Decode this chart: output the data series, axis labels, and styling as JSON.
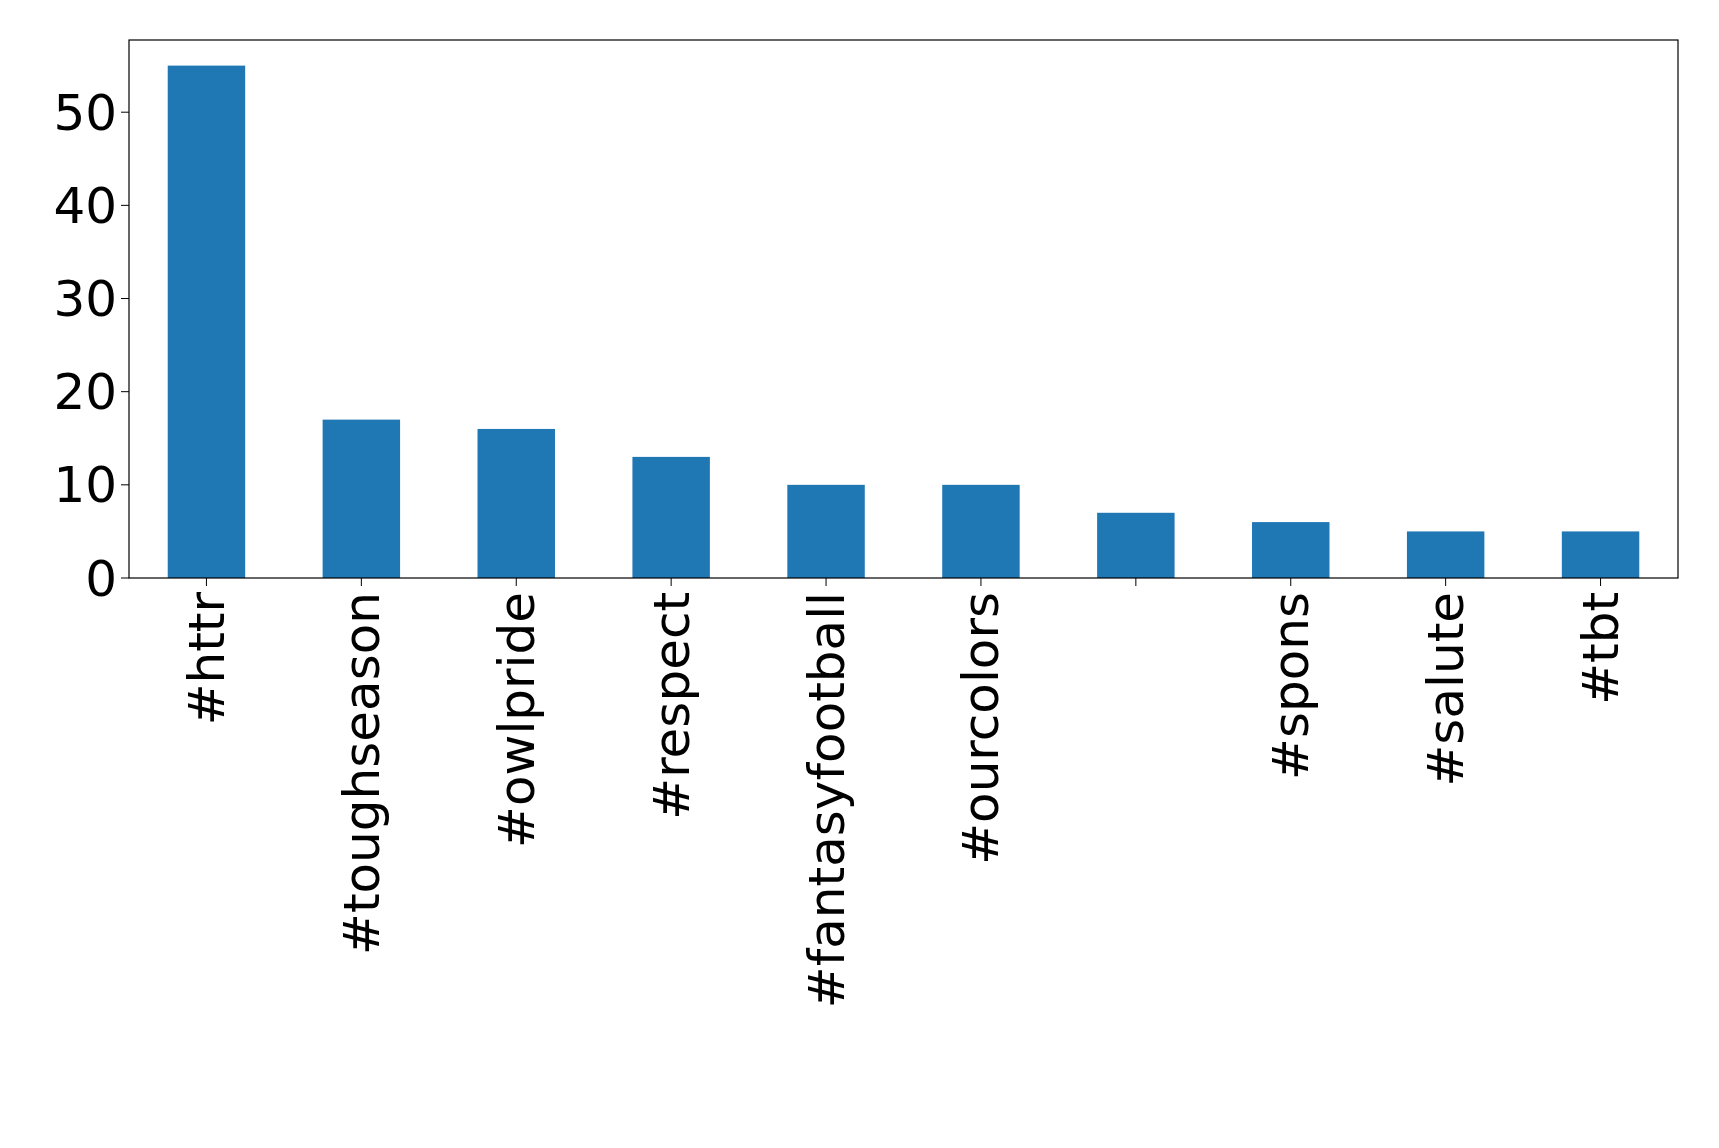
{
  "chart_data": {
    "type": "bar",
    "categories": [
      "#httr",
      "#toughseason",
      "#owlpride",
      "#respect",
      "#fantasyfootball",
      "#ourcolors",
      null,
      "#spons",
      "#salute",
      "#tbt"
    ],
    "values": [
      55,
      17,
      16,
      13,
      10,
      10,
      7,
      6,
      5,
      5
    ],
    "color": "#1f77b4",
    "ylim": [
      0,
      57.75
    ],
    "yticks": [
      0,
      10,
      20,
      30,
      40,
      50
    ],
    "grid": false
  }
}
